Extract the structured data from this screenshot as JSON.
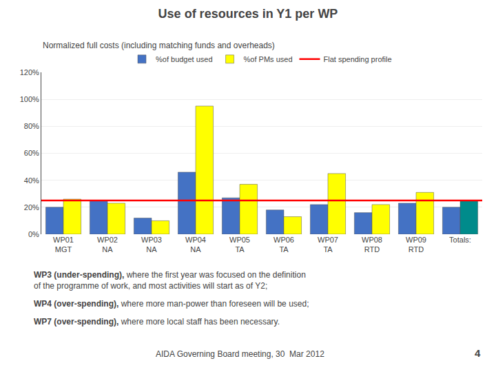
{
  "chart_data": {
    "type": "bar",
    "title": "Use of resources in Y1 per WP",
    "subtitle": "Normalized full costs (including matching funds and overheads)",
    "categories": [
      "WP01",
      "WP02",
      "WP03",
      "WP04",
      "WP05",
      "WP06",
      "WP07",
      "WP08",
      "WP09",
      "Totals:"
    ],
    "category_groups": [
      "MGT",
      "NA",
      "NA",
      "NA",
      "TA",
      "TA",
      "TA",
      "RTD",
      "RTD",
      null
    ],
    "series": [
      {
        "name": "%of budget used",
        "color": "#4472C4",
        "values": [
          20,
          25,
          12,
          46,
          27,
          18,
          22,
          16,
          23,
          20
        ]
      },
      {
        "name": "%of PMs used",
        "colors": [
          "#FFFF00",
          "#FFFF00",
          "#FFFF00",
          "#FFFF00",
          "#FFFF00",
          "#FFFF00",
          "#FFFF00",
          "#FFFF00",
          "#FFFF00",
          "#008B8B"
        ],
        "values": [
          26,
          23,
          10,
          95,
          37,
          13,
          45,
          22,
          31,
          25
        ]
      }
    ],
    "lines": [
      {
        "name": "Flat spending profile",
        "color": "#FF0000",
        "value": 25
      }
    ],
    "ylim": [
      0,
      120
    ],
    "yticks": [
      {
        "value": 0,
        "label": "0%"
      },
      {
        "value": 20,
        "label": "20%"
      },
      {
        "value": 40,
        "label": "40%"
      },
      {
        "value": 60,
        "label": "60%"
      },
      {
        "value": 80,
        "label": "80%"
      },
      {
        "value": 100,
        "label": "100%"
      },
      {
        "value": 120,
        "label": "120%"
      }
    ],
    "grid": true,
    "legend": "top",
    "annotations": [
      {
        "bold": "WP3 (under-spending),",
        "text": "where the first year was focused on the definition\nof the programme of work, and most activities will start as of Y2;"
      },
      {
        "bold": "WP4 (over-spending),",
        "text": "where more man-power than foreseen will be used;"
      },
      {
        "bold": "WP7 (over-spending),",
        "text": "where more local staff has been necessary."
      }
    ],
    "footer": "AIDA Governing Board meeting, 30  Mar 2012",
    "page": "4"
  }
}
